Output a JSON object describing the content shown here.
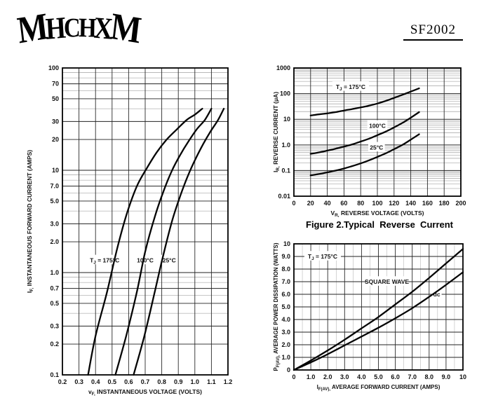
{
  "header": {
    "logo_text": "MHCHXM",
    "part_number": "SF2002"
  },
  "captions": {
    "figure2": "Figure 2.Typical  Reverse  Current"
  },
  "chart_data": [
    {
      "id": "forward-voltage",
      "type": "line",
      "title": "",
      "x": {
        "scale": "linear",
        "min": 0.2,
        "max": 1.2,
        "ticks": [
          {
            "v": 0.2,
            "l": "0.2"
          },
          {
            "v": 0.3,
            "l": "0.3"
          },
          {
            "v": 0.4,
            "l": "0.4"
          },
          {
            "v": 0.5,
            "l": "0.5"
          },
          {
            "v": 0.6,
            "l": "0.6"
          },
          {
            "v": 0.7,
            "l": "0.7"
          },
          {
            "v": 0.8,
            "l": "0.8"
          },
          {
            "v": 0.9,
            "l": "0.9"
          },
          {
            "v": 1.0,
            "l": "1.0"
          },
          {
            "v": 1.1,
            "l": "1.1"
          },
          {
            "v": 1.2,
            "l": "1.2"
          }
        ],
        "minor": []
      },
      "y": {
        "scale": "log",
        "min": 0.1,
        "max": 100,
        "major_mantissa": [
          1,
          2,
          3,
          5,
          7
        ],
        "ticks": [
          {
            "v": 100,
            "l": "100"
          },
          {
            "v": 70,
            "l": "70"
          },
          {
            "v": 50,
            "l": "50"
          },
          {
            "v": 30,
            "l": "30"
          },
          {
            "v": 20,
            "l": "20"
          },
          {
            "v": 10,
            "l": "10"
          },
          {
            "v": 7,
            "l": "7.0"
          },
          {
            "v": 5,
            "l": "5.0"
          },
          {
            "v": 3,
            "l": "3.0"
          },
          {
            "v": 2,
            "l": "2.0"
          },
          {
            "v": 1,
            "l": "1.0"
          },
          {
            "v": 0.7,
            "l": "0.7"
          },
          {
            "v": 0.5,
            "l": "0.5"
          },
          {
            "v": 0.3,
            "l": "0.3"
          },
          {
            "v": 0.2,
            "l": "0.2"
          },
          {
            "v": 0.1,
            "l": "0.1"
          }
        ]
      },
      "xlabel_parts": [
        {
          "t": "v"
        },
        {
          "t": "F,",
          "sub": true
        },
        {
          "t": " INSTANTANEOUS VOLTAGE (VOLTS)"
        }
      ],
      "ylabel_parts": [
        {
          "t": "I"
        },
        {
          "t": "F,",
          "sub": true
        },
        {
          "t": " INSTANTANEOUS FORWARD CURRENT (AMPS)"
        }
      ],
      "series": [
        {
          "name": "TJ = 175°C",
          "points": [
            [
              0.355,
              0.1
            ],
            [
              0.4,
              0.24
            ],
            [
              0.47,
              0.65
            ],
            [
              0.53,
              1.7
            ],
            [
              0.59,
              3.8
            ],
            [
              0.65,
              7.0
            ],
            [
              0.71,
              10.5
            ],
            [
              0.77,
              15
            ],
            [
              0.83,
              20
            ],
            [
              0.89,
              25
            ],
            [
              0.95,
              31
            ],
            [
              1.0,
              35
            ],
            [
              1.045,
              40
            ]
          ]
        },
        {
          "name": "100°C",
          "points": [
            [
              0.52,
              0.1
            ],
            [
              0.585,
              0.24
            ],
            [
              0.65,
              0.65
            ],
            [
              0.7,
              1.6
            ],
            [
              0.76,
              3.6
            ],
            [
              0.81,
              6.2
            ],
            [
              0.86,
              9.8
            ],
            [
              0.91,
              14
            ],
            [
              0.96,
              19
            ],
            [
              1.01,
              25
            ],
            [
              1.06,
              31
            ],
            [
              1.1,
              40
            ]
          ]
        },
        {
          "name": "25°C",
          "points": [
            [
              0.63,
              0.1
            ],
            [
              0.695,
              0.24
            ],
            [
              0.755,
              0.62
            ],
            [
              0.81,
              1.5
            ],
            [
              0.865,
              3.3
            ],
            [
              0.915,
              5.8
            ],
            [
              0.96,
              9.0
            ],
            [
              1.005,
              13
            ],
            [
              1.05,
              18
            ],
            [
              1.095,
              24
            ],
            [
              1.14,
              31
            ],
            [
              1.175,
              40
            ]
          ]
        }
      ],
      "annotations": [
        {
          "x": 0.455,
          "y": 1.32,
          "parts": [
            {
              "t": "T"
            },
            {
              "t": "J",
              "sub": true
            },
            {
              "t": " = 175°C"
            }
          ]
        },
        {
          "x": 0.7,
          "y": 1.32,
          "parts": [
            {
              "t": "100°C"
            }
          ]
        },
        {
          "x": 0.845,
          "y": 1.32,
          "parts": [
            {
              "t": "25°C"
            }
          ]
        }
      ]
    },
    {
      "id": "reverse-current",
      "type": "line",
      "title": "Figure 2.Typical Reverse Current",
      "x": {
        "scale": "linear",
        "min": 0,
        "max": 200,
        "ticks": [
          {
            "v": 0,
            "l": "0"
          },
          {
            "v": 20,
            "l": "20"
          },
          {
            "v": 40,
            "l": "40"
          },
          {
            "v": 60,
            "l": "60"
          },
          {
            "v": 80,
            "l": "80"
          },
          {
            "v": 100,
            "l": "100"
          },
          {
            "v": 120,
            "l": "120"
          },
          {
            "v": 140,
            "l": "140"
          },
          {
            "v": 160,
            "l": "160"
          },
          {
            "v": 180,
            "l": "180"
          },
          {
            "v": 200,
            "l": "200"
          }
        ],
        "minor": []
      },
      "y": {
        "scale": "log",
        "min": 0.01,
        "max": 1000,
        "major_mantissa": [
          1
        ],
        "ticks": [
          {
            "v": 1000,
            "l": "1000"
          },
          {
            "v": 100,
            "l": "100"
          },
          {
            "v": 10,
            "l": "10"
          },
          {
            "v": 1,
            "l": "1.0"
          },
          {
            "v": 0.1,
            "l": "0.1"
          },
          {
            "v": 0.01,
            "l": "0.01"
          }
        ]
      },
      "xlabel_parts": [
        {
          "t": "V"
        },
        {
          "t": "R,",
          "sub": true
        },
        {
          "t": " REVERSE VOLTAGE (VOLTS)"
        }
      ],
      "ylabel_parts": [
        {
          "t": "I"
        },
        {
          "t": "R,",
          "sub": true
        },
        {
          "t": " REVERSE CURRENT (μA)"
        }
      ],
      "series": [
        {
          "name": "TJ = 175°C",
          "points": [
            [
              20,
              14
            ],
            [
              30,
              15.5
            ],
            [
              40,
              17
            ],
            [
              50,
              19
            ],
            [
              60,
              22
            ],
            [
              70,
              25
            ],
            [
              80,
              29
            ],
            [
              90,
              34
            ],
            [
              100,
              41
            ],
            [
              110,
              52
            ],
            [
              120,
              68
            ],
            [
              130,
              90
            ],
            [
              140,
              120
            ],
            [
              150,
              160
            ]
          ]
        },
        {
          "name": "100°C",
          "points": [
            [
              20,
              0.45
            ],
            [
              30,
              0.51
            ],
            [
              40,
              0.6
            ],
            [
              50,
              0.71
            ],
            [
              60,
              0.86
            ],
            [
              70,
              1.05
            ],
            [
              80,
              1.35
            ],
            [
              90,
              1.75
            ],
            [
              100,
              2.4
            ],
            [
              110,
              3.3
            ],
            [
              120,
              4.8
            ],
            [
              130,
              7.2
            ],
            [
              140,
              11.5
            ],
            [
              150,
              19
            ]
          ]
        },
        {
          "name": "25°C",
          "points": [
            [
              20,
              0.065
            ],
            [
              30,
              0.073
            ],
            [
              40,
              0.085
            ],
            [
              50,
              0.1
            ],
            [
              60,
              0.12
            ],
            [
              70,
              0.15
            ],
            [
              80,
              0.19
            ],
            [
              90,
              0.25
            ],
            [
              100,
              0.34
            ],
            [
              110,
              0.47
            ],
            [
              120,
              0.68
            ],
            [
              130,
              1.0
            ],
            [
              140,
              1.6
            ],
            [
              150,
              2.6
            ]
          ]
        }
      ],
      "annotations": [
        {
          "x": 68,
          "y": 185,
          "parts": [
            {
              "t": "T"
            },
            {
              "t": "J",
              "sub": true
            },
            {
              "t": " = 175°C"
            }
          ]
        },
        {
          "x": 100,
          "y": 5.6,
          "parts": [
            {
              "t": "100°C"
            }
          ]
        },
        {
          "x": 99,
          "y": 0.8,
          "parts": [
            {
              "t": "25°C"
            }
          ]
        }
      ]
    },
    {
      "id": "power-dissipation",
      "type": "line",
      "title": "",
      "x": {
        "scale": "linear",
        "min": 0,
        "max": 10,
        "ticks": [
          {
            "v": 0,
            "l": "0"
          },
          {
            "v": 1,
            "l": "1.0"
          },
          {
            "v": 2,
            "l": "2.0"
          },
          {
            "v": 3,
            "l": "3.0"
          },
          {
            "v": 4,
            "l": "4.0"
          },
          {
            "v": 5,
            "l": "5.0"
          },
          {
            "v": 6,
            "l": "6.0"
          },
          {
            "v": 7,
            "l": "7.0"
          },
          {
            "v": 8,
            "l": "8.0"
          },
          {
            "v": 9,
            "l": "9.0"
          },
          {
            "v": 10,
            "l": "10"
          }
        ],
        "minor": [
          0.5,
          1.5,
          2.5,
          3.5,
          4.5,
          5.5,
          6.5,
          7.5,
          8.5,
          9.5
        ]
      },
      "y": {
        "scale": "linear",
        "min": 0,
        "max": 10,
        "ticks": [
          {
            "v": 10,
            "l": "10"
          },
          {
            "v": 9,
            "l": "9.0"
          },
          {
            "v": 8,
            "l": "8.0"
          },
          {
            "v": 7,
            "l": "7.0"
          },
          {
            "v": 6,
            "l": "6.0"
          },
          {
            "v": 5,
            "l": "5.0"
          },
          {
            "v": 4,
            "l": "4.0"
          },
          {
            "v": 3,
            "l": "3.0"
          },
          {
            "v": 2,
            "l": "2.0"
          },
          {
            "v": 1,
            "l": "1.0"
          },
          {
            "v": 0,
            "l": "0"
          }
        ]
      },
      "xlabel_parts": [
        {
          "t": "I"
        },
        {
          "t": "F(AV),",
          "sub": true
        },
        {
          "t": " AVERAGE FORWARD CURRENT (AMPS)"
        }
      ],
      "ylabel_parts": [
        {
          "t": "P"
        },
        {
          "t": "F(AV),",
          "sub": true
        },
        {
          "t": " AVERAGE POWER DISSIPATION (WATTS)"
        }
      ],
      "series": [
        {
          "name": "SQUARE WAVE",
          "points": [
            [
              0,
              0
            ],
            [
              1,
              0.75
            ],
            [
              2,
              1.55
            ],
            [
              3,
              2.4
            ],
            [
              4,
              3.3
            ],
            [
              5,
              4.2
            ],
            [
              6,
              5.2
            ],
            [
              7,
              6.2
            ],
            [
              8,
              7.3
            ],
            [
              9,
              8.45
            ],
            [
              10,
              9.6
            ]
          ]
        },
        {
          "name": "dc",
          "points": [
            [
              0,
              0
            ],
            [
              1,
              0.6
            ],
            [
              2,
              1.25
            ],
            [
              3,
              1.95
            ],
            [
              4,
              2.65
            ],
            [
              5,
              3.35
            ],
            [
              6,
              4.1
            ],
            [
              7,
              4.9
            ],
            [
              8,
              5.8
            ],
            [
              9,
              6.75
            ],
            [
              10,
              7.75
            ]
          ]
        }
      ],
      "annotations": [
        {
          "x": 1.7,
          "y": 9.0,
          "parts": [
            {
              "t": "T"
            },
            {
              "t": "J",
              "sub": true
            },
            {
              "t": " = 175°C"
            }
          ]
        },
        {
          "x": 5.5,
          "y": 7.0,
          "parts": [
            {
              "t": "SQUARE WAVE"
            }
          ]
        },
        {
          "x": 8.45,
          "y": 6.0,
          "parts": [
            {
              "t": "dc"
            }
          ]
        }
      ]
    }
  ]
}
